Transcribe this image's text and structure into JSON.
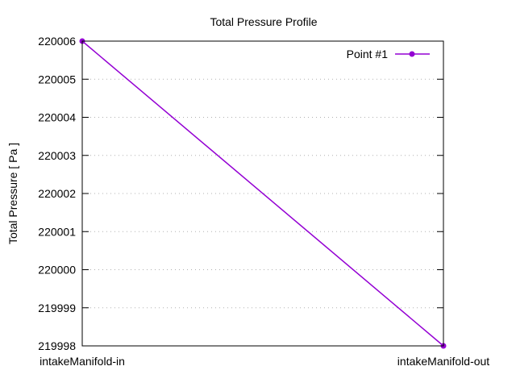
{
  "chart_data": {
    "type": "line",
    "title": "Total Pressure Profile",
    "xlabel": "",
    "ylabel": "Total Pressure [ Pa ]",
    "categories": [
      "intakeManifold-in",
      "intakeManifold-out"
    ],
    "yticks": [
      "219998",
      "219999",
      "220000",
      "220001",
      "220002",
      "220003",
      "220004",
      "220005",
      "220006"
    ],
    "ylim": [
      219998,
      220006
    ],
    "grid": true,
    "legend_position": "top-right",
    "series": [
      {
        "name": "Point #1",
        "color": "#9400d3",
        "values": [
          220006,
          219998
        ]
      }
    ]
  }
}
